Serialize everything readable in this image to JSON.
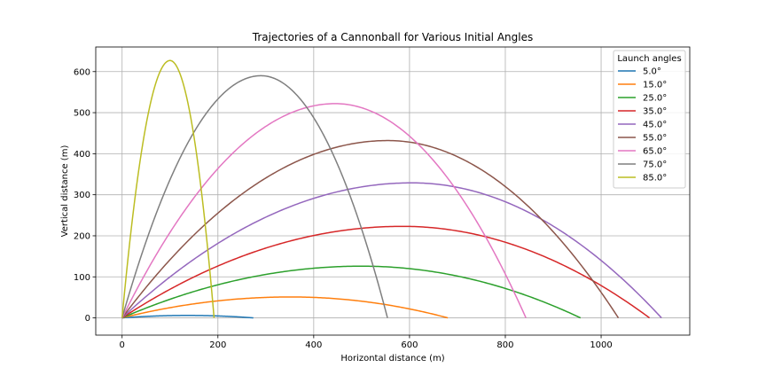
{
  "chart_data": {
    "type": "line",
    "title": "Trajectories of a Cannonball for Various Initial Angles",
    "xlabel": "Horizontal distance (m)",
    "ylabel": "Vertical distance (m)",
    "xlim": [
      -55,
      1185
    ],
    "ylim": [
      -42,
      660
    ],
    "xticks": [
      0,
      200,
      400,
      600,
      800,
      1000
    ],
    "yticks": [
      0,
      100,
      200,
      300,
      400,
      500,
      600
    ],
    "grid": true,
    "legend": {
      "title": "Launch angles",
      "placement": "top-right"
    },
    "series": [
      {
        "name": "5.0°",
        "color": "#1f77b4",
        "range": 274,
        "max_height": 6,
        "apex_x": 137
      },
      {
        "name": "15.0°",
        "color": "#ff7f0e",
        "range": 680,
        "max_height": 51,
        "apex_x": 352
      },
      {
        "name": "25.0°",
        "color": "#2ca02c",
        "range": 957,
        "max_height": 126,
        "apex_x": 500
      },
      {
        "name": "35.0°",
        "color": "#d62728",
        "range": 1101,
        "max_height": 223,
        "apex_x": 585
      },
      {
        "name": "45.0°",
        "color": "#9467bd",
        "range": 1126,
        "max_height": 329,
        "apex_x": 605
      },
      {
        "name": "55.0°",
        "color": "#8c564b",
        "range": 1036,
        "max_height": 432,
        "apex_x": 555
      },
      {
        "name": "65.0°",
        "color": "#e377c2",
        "range": 843,
        "max_height": 522,
        "apex_x": 445
      },
      {
        "name": "75.0°",
        "color": "#7f7f7f",
        "range": 554,
        "max_height": 590,
        "apex_x": 290
      },
      {
        "name": "85.0°",
        "color": "#bcbd22",
        "range": 192,
        "max_height": 627,
        "apex_x": 100
      }
    ]
  }
}
